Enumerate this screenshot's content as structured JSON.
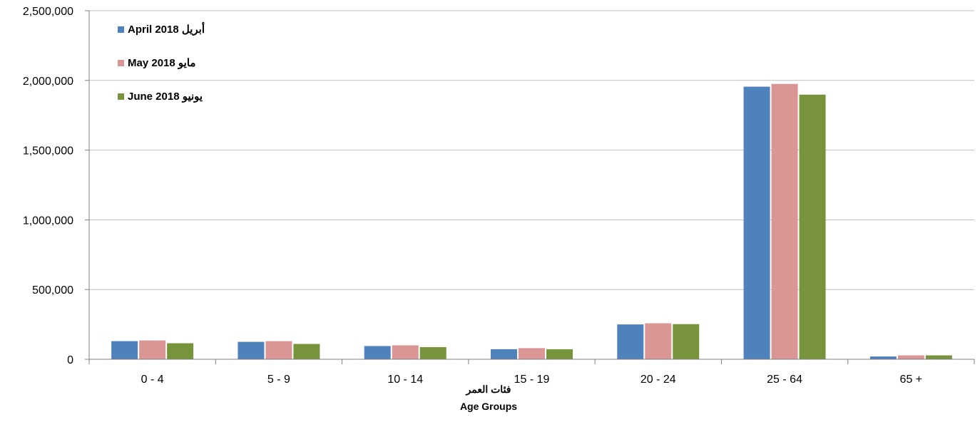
{
  "chart_data": {
    "type": "bar",
    "categories": [
      "0 - 4",
      "5 - 9",
      "10 - 14",
      "15 - 19",
      "20 - 24",
      "25 - 64",
      "65 +"
    ],
    "series": [
      {
        "name": "April 2018  أبريل",
        "color": "#4f81bd",
        "values": [
          130000,
          125000,
          95000,
          72000,
          250000,
          1955000,
          20000
        ]
      },
      {
        "name": "May 2018  مايو",
        "color": "#d99694",
        "values": [
          135000,
          130000,
          100000,
          80000,
          258000,
          1975000,
          28000
        ]
      },
      {
        "name": "June 2018  يونيو",
        "color": "#77933c",
        "values": [
          115000,
          110000,
          87000,
          72000,
          252000,
          1898000,
          28000
        ]
      }
    ],
    "yticks": [
      "0",
      "500,000",
      "1,000,000",
      "1,500,000",
      "2,000,000",
      "2,500,000"
    ],
    "ylim": [
      0,
      2500000
    ],
    "xlabel_ar": "فئات العمر",
    "xlabel": "Age Groups",
    "ylabel": "",
    "title": "",
    "grid": true,
    "legend_position": "top-left"
  }
}
